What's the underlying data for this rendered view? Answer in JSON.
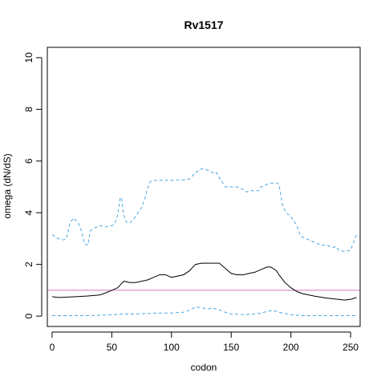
{
  "chart_data": {
    "type": "line",
    "title": "Rv1517",
    "xlabel": "codon",
    "ylabel": "omega (dN/dS)",
    "xlim": [
      -4,
      258
    ],
    "ylim": [
      -0.4,
      10.4
    ],
    "x_ticks": [
      0,
      50,
      100,
      150,
      200,
      250
    ],
    "y_ticks": [
      0,
      2,
      4,
      6,
      8,
      10
    ],
    "grid": false,
    "legend": "none",
    "reference_line": {
      "y": 1,
      "color": "#cc79c8"
    },
    "colors": {
      "mean": "#000000",
      "ci": "#4aa7e0",
      "reference": "#cc79c8",
      "frame": "#000000"
    },
    "series": [
      {
        "role": "upper",
        "style": "dashed",
        "x": [
          0,
          5,
          10,
          12,
          15,
          18,
          20,
          22,
          25,
          27,
          30,
          32,
          35,
          40,
          45,
          50,
          52,
          55,
          57,
          58,
          60,
          62,
          65,
          68,
          70,
          72,
          75,
          78,
          80,
          82,
          85,
          90,
          95,
          100,
          105,
          110,
          115,
          120,
          125,
          130,
          133,
          136,
          138,
          140,
          145,
          150,
          155,
          160,
          163,
          165,
          168,
          170,
          173,
          175,
          180,
          183,
          185,
          188,
          190,
          193,
          196,
          200,
          205,
          208,
          210,
          215,
          220,
          225,
          230,
          235,
          238,
          240,
          245,
          250,
          255
        ],
        "y": [
          3.15,
          3.0,
          2.95,
          3.0,
          3.6,
          3.8,
          3.7,
          3.6,
          3.25,
          2.8,
          2.75,
          3.3,
          3.4,
          3.5,
          3.45,
          3.5,
          3.55,
          3.9,
          4.55,
          4.6,
          3.9,
          3.65,
          3.6,
          3.75,
          3.85,
          4.0,
          4.2,
          4.6,
          4.95,
          5.2,
          5.25,
          5.25,
          5.25,
          5.25,
          5.27,
          5.27,
          5.3,
          5.55,
          5.7,
          5.65,
          5.6,
          5.5,
          5.55,
          5.35,
          5.0,
          5.0,
          5.0,
          4.9,
          4.8,
          4.85,
          4.85,
          4.85,
          4.85,
          5.0,
          5.1,
          5.15,
          5.15,
          5.15,
          5.1,
          4.3,
          4.0,
          3.85,
          3.5,
          3.1,
          3.05,
          2.95,
          2.85,
          2.75,
          2.75,
          2.65,
          2.7,
          2.55,
          2.5,
          2.55,
          3.15
        ]
      },
      {
        "role": "mean",
        "style": "solid",
        "x": [
          0,
          5,
          10,
          20,
          30,
          40,
          45,
          50,
          55,
          58,
          60,
          65,
          70,
          80,
          85,
          90,
          95,
          100,
          105,
          110,
          115,
          120,
          125,
          130,
          135,
          140,
          145,
          150,
          155,
          160,
          165,
          170,
          175,
          180,
          183,
          185,
          188,
          190,
          195,
          200,
          205,
          210,
          220,
          230,
          240,
          245,
          250,
          255
        ],
        "y": [
          0.75,
          0.72,
          0.73,
          0.75,
          0.78,
          0.82,
          0.9,
          1.0,
          1.1,
          1.25,
          1.35,
          1.3,
          1.3,
          1.4,
          1.5,
          1.6,
          1.6,
          1.5,
          1.55,
          1.6,
          1.75,
          2.0,
          2.05,
          2.05,
          2.05,
          2.05,
          1.85,
          1.65,
          1.6,
          1.6,
          1.65,
          1.7,
          1.8,
          1.9,
          1.9,
          1.85,
          1.75,
          1.6,
          1.3,
          1.1,
          0.95,
          0.87,
          0.77,
          0.7,
          0.65,
          0.62,
          0.65,
          0.72
        ]
      },
      {
        "role": "lower",
        "style": "dashed",
        "x": [
          0,
          10,
          20,
          30,
          40,
          50,
          60,
          70,
          80,
          90,
          100,
          110,
          115,
          120,
          125,
          130,
          135,
          140,
          145,
          150,
          160,
          170,
          175,
          180,
          185,
          190,
          200,
          210,
          220,
          230,
          240,
          250,
          255
        ],
        "y": [
          0.02,
          0.02,
          0.02,
          0.02,
          0.03,
          0.05,
          0.08,
          0.08,
          0.1,
          0.12,
          0.12,
          0.15,
          0.22,
          0.35,
          0.33,
          0.28,
          0.3,
          0.25,
          0.15,
          0.08,
          0.06,
          0.08,
          0.12,
          0.18,
          0.22,
          0.15,
          0.05,
          0.02,
          0.02,
          0.02,
          0.02,
          0.02,
          0.02
        ]
      }
    ]
  }
}
